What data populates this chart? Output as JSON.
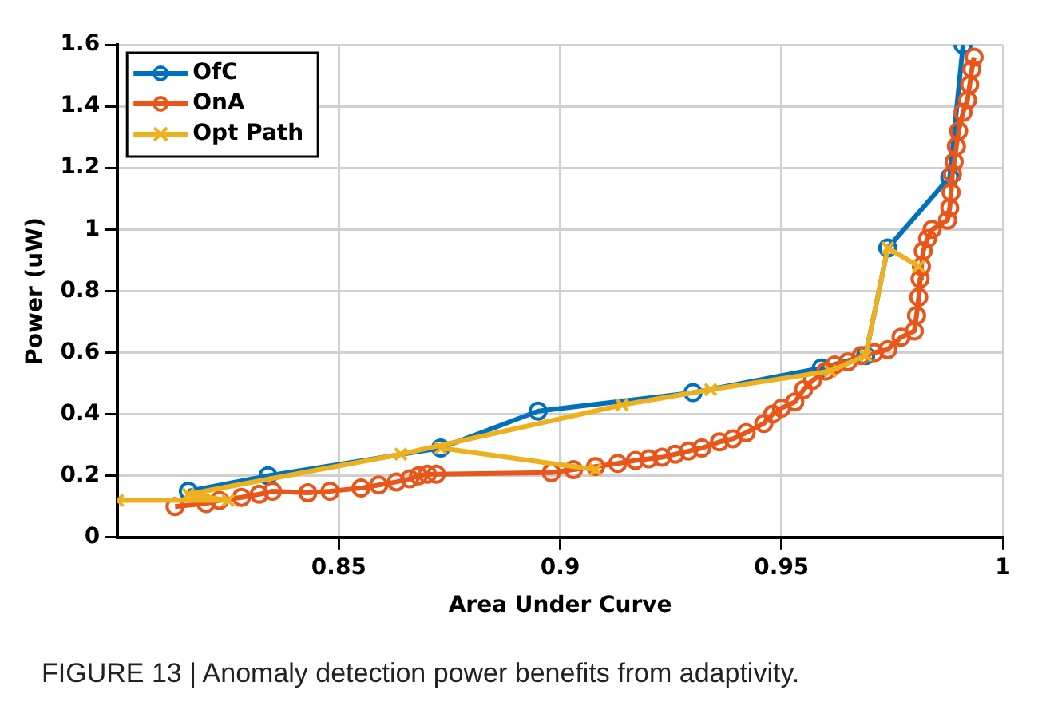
{
  "chart_data": {
    "type": "line",
    "xlabel": "Area Under Curve",
    "ylabel": "Power (uW)",
    "annotations": [
      "FIGURE 13 | Anomaly detection power benefits from adaptivity."
    ],
    "xlim": [
      0.8,
      1
    ],
    "xticks": [
      0.85,
      0.9,
      0.95,
      1
    ],
    "ylim": [
      0,
      1.6
    ],
    "yticks": [
      0,
      0.2,
      0.4,
      0.6,
      0.8,
      1,
      1.2,
      1.4,
      1.6
    ],
    "grid": true,
    "legend": "top left",
    "line_style": "solid",
    "series": [
      {
        "name": "OfC",
        "color": "#0072bd",
        "marker": "circle",
        "x": [
          0.816,
          0.834,
          0.873,
          0.895,
          0.93,
          0.959,
          0.969,
          0.974,
          0.988,
          0.991
        ],
        "values": [
          0.15,
          0.2,
          0.29,
          0.41,
          0.47,
          0.55,
          0.59,
          0.94,
          1.17,
          1.6
        ]
      },
      {
        "name": "OnA",
        "color": "#e8561a",
        "marker": "circle",
        "x": [
          0.813,
          0.82,
          0.823,
          0.828,
          0.832,
          0.835,
          0.843,
          0.848,
          0.855,
          0.859,
          0.863,
          0.866,
          0.868,
          0.87,
          0.872,
          0.898,
          0.903,
          0.908,
          0.913,
          0.917,
          0.92,
          0.923,
          0.926,
          0.929,
          0.932,
          0.936,
          0.939,
          0.942,
          0.946,
          0.948,
          0.95,
          0.953,
          0.955,
          0.957,
          0.96,
          0.962,
          0.965,
          0.968,
          0.971,
          0.974,
          0.977,
          0.98,
          0.9805,
          0.981,
          0.9813,
          0.9816,
          0.982,
          0.983,
          0.984,
          0.9875,
          0.988,
          0.9883,
          0.9886,
          0.989,
          0.9895,
          0.99,
          0.991,
          0.992,
          0.9925,
          0.993,
          0.9935
        ],
        "values": [
          0.1,
          0.11,
          0.12,
          0.13,
          0.14,
          0.15,
          0.145,
          0.15,
          0.16,
          0.17,
          0.18,
          0.19,
          0.2,
          0.205,
          0.205,
          0.21,
          0.22,
          0.23,
          0.24,
          0.25,
          0.255,
          0.26,
          0.27,
          0.28,
          0.29,
          0.31,
          0.32,
          0.34,
          0.37,
          0.4,
          0.42,
          0.44,
          0.48,
          0.51,
          0.54,
          0.56,
          0.57,
          0.59,
          0.6,
          0.61,
          0.65,
          0.67,
          0.72,
          0.78,
          0.84,
          0.88,
          0.93,
          0.97,
          1.0,
          1.03,
          1.07,
          1.12,
          1.18,
          1.22,
          1.27,
          1.32,
          1.38,
          1.42,
          1.47,
          1.52,
          1.56
        ]
      },
      {
        "name": "Opt Path",
        "color": "#edb120",
        "marker": "cross",
        "x": [
          0.8,
          0.825,
          0.816,
          0.864,
          0.914,
          0.934,
          0.961,
          0.969,
          0.974,
          0.981,
          0.9,
          0.873,
          0.908
        ],
        "values": [
          0.12,
          0.12,
          0.14,
          0.27,
          0.43,
          0.48,
          0.54,
          0.59,
          0.94,
          0.88,
          null,
          0.29,
          0.22
        ]
      }
    ]
  }
}
